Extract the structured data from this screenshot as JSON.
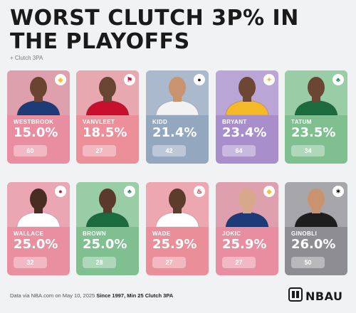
{
  "header": {
    "title": "WORST CLUTCH 3P% IN THE PLAYOFFS",
    "subtitle": "+ Clutch 3PA"
  },
  "players": [
    {
      "name": "WESTBROOK",
      "pct": "15.0%",
      "attempts": "60",
      "card_color": "#e98ea1",
      "photo_bg": "#dda0ac",
      "jersey": "#1d3b78",
      "skin": "#6b4430",
      "logo": "nuggets-logo",
      "logo_color": "#f7c22e",
      "logo_glyph": "◆"
    },
    {
      "name": "VANVLEET",
      "pct": "18.5%",
      "attempts": "27",
      "card_color": "#ec8f99",
      "photo_bg": "#e7a8b0",
      "jersey": "#c8102e",
      "skin": "#6a4534",
      "logo": "rockets-logo",
      "logo_color": "#ce1141",
      "logo_glyph": "⚑"
    },
    {
      "name": "KIDD",
      "pct": "21.4%",
      "attempts": "42",
      "card_color": "#93a7bf",
      "photo_bg": "#aab9cc",
      "jersey": "#f2f2f2",
      "skin": "#c8936e",
      "logo": "nets-logo",
      "logo_color": "#222222",
      "logo_glyph": "●"
    },
    {
      "name": "BRYANT",
      "pct": "23.4%",
      "attempts": "64",
      "card_color": "#a88fcb",
      "photo_bg": "#b9a5d6",
      "jersey": "#f4b828",
      "skin": "#6e4634",
      "logo": "lakers-logo",
      "logo_color": "#f4b828",
      "logo_glyph": "✦"
    },
    {
      "name": "TATUM",
      "pct": "23.5%",
      "attempts": "34",
      "card_color": "#7fbf90",
      "photo_bg": "#98cda6",
      "jersey": "#1c6b3f",
      "skin": "#6b4634",
      "logo": "celtics-logo",
      "logo_color": "#2e8b57",
      "logo_glyph": "♣"
    },
    {
      "name": "WALLACE",
      "pct": "25.0%",
      "attempts": "32",
      "card_color": "#ea8fa0",
      "photo_bg": "#eaa6b3",
      "jersey": "#ffffff",
      "skin": "#4a2d22",
      "logo": "pistons-logo",
      "logo_color": "#c8102e",
      "logo_glyph": "●"
    },
    {
      "name": "BROWN",
      "pct": "25.0%",
      "attempts": "28",
      "card_color": "#7fbf90",
      "photo_bg": "#98cda6",
      "jersey": "#1c6b3f",
      "skin": "#5a3a2b",
      "logo": "celtics-logo",
      "logo_color": "#2e8b57",
      "logo_glyph": "♣"
    },
    {
      "name": "WADE",
      "pct": "25.9%",
      "attempts": "27",
      "card_color": "#ea8f9a",
      "photo_bg": "#eca7b0",
      "jersey": "#ffffff",
      "skin": "#5e3c2c",
      "logo": "heat-logo",
      "logo_color": "#c8102e",
      "logo_glyph": "♨"
    },
    {
      "name": "JOKIC",
      "pct": "25.9%",
      "attempts": "27",
      "card_color": "#e98ea1",
      "photo_bg": "#dda0ac",
      "jersey": "#1d3b78",
      "skin": "#d8a88a",
      "logo": "nuggets-logo",
      "logo_color": "#f7c22e",
      "logo_glyph": "◆"
    },
    {
      "name": "GINOBLI",
      "pct": "26.0%",
      "attempts": "50",
      "card_color": "#8e8e92",
      "photo_bg": "#a7a7ab",
      "jersey": "#1e1e1e",
      "skin": "#c8936e",
      "logo": "spurs-logo",
      "logo_color": "#000000",
      "logo_glyph": "✶"
    }
  ],
  "footer": {
    "source": "Data via NBA.com on May 10, 2025",
    "criteria": "Since 1997, Min 25 Clutch 3PA"
  },
  "brand": {
    "name": "NBAU",
    "icon": "nbau-logo-icon"
  }
}
